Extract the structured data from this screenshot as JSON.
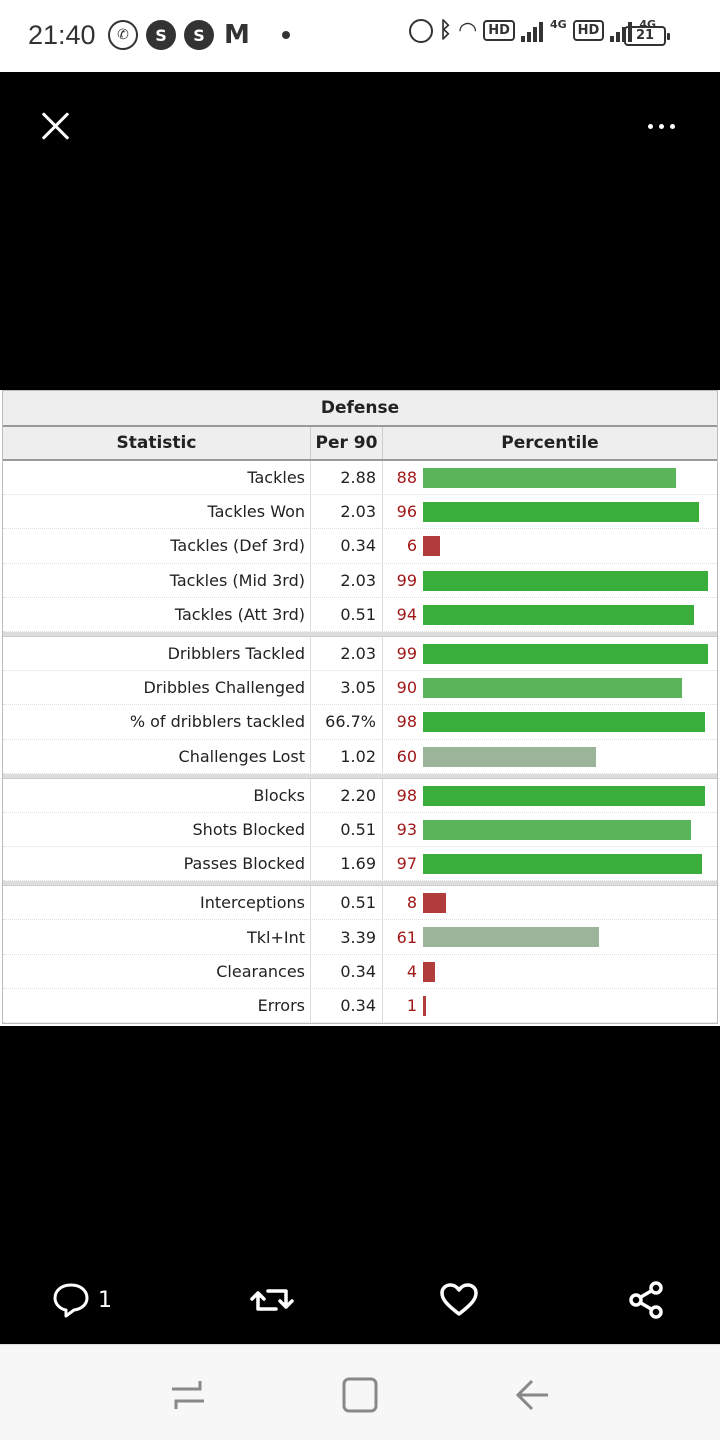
{
  "status_bar": {
    "time": "21:40",
    "battery": "21",
    "left_icons": [
      "whatsapp-icon",
      "sync-icon",
      "sync-icon",
      "gmail-icon",
      "dot-icon"
    ],
    "right_icons": [
      "alarm-icon",
      "bluetooth-icon",
      "wifi-icon",
      "hd-icon",
      "signal-icon",
      "hd-icon",
      "signal-icon",
      "battery-icon"
    ],
    "hd_label": "HD",
    "network_label": "4G"
  },
  "table": {
    "caption": "Defense",
    "headers": {
      "statistic": "Statistic",
      "per90": "Per 90",
      "percentile": "Percentile"
    },
    "groups": [
      [
        {
          "stat": "Tackles",
          "per90": "2.88",
          "pct": "88"
        },
        {
          "stat": "Tackles Won",
          "per90": "2.03",
          "pct": "96"
        },
        {
          "stat": "Tackles (Def 3rd)",
          "per90": "0.34",
          "pct": "6"
        },
        {
          "stat": "Tackles (Mid 3rd)",
          "per90": "2.03",
          "pct": "99"
        },
        {
          "stat": "Tackles (Att 3rd)",
          "per90": "0.51",
          "pct": "94"
        }
      ],
      [
        {
          "stat": "Dribblers Tackled",
          "per90": "2.03",
          "pct": "99"
        },
        {
          "stat": "Dribbles Challenged",
          "per90": "3.05",
          "pct": "90"
        },
        {
          "stat": "% of dribblers tackled",
          "per90": "66.7%",
          "pct": "98"
        },
        {
          "stat": "Challenges Lost",
          "per90": "1.02",
          "pct": "60"
        }
      ],
      [
        {
          "stat": "Blocks",
          "per90": "2.20",
          "pct": "98"
        },
        {
          "stat": "Shots Blocked",
          "per90": "0.51",
          "pct": "93"
        },
        {
          "stat": "Passes Blocked",
          "per90": "1.69",
          "pct": "97"
        }
      ],
      [
        {
          "stat": "Interceptions",
          "per90": "0.51",
          "pct": "8"
        },
        {
          "stat": "Tkl+Int",
          "per90": "3.39",
          "pct": "61"
        },
        {
          "stat": "Clearances",
          "per90": "0.34",
          "pct": "4"
        },
        {
          "stat": "Errors",
          "per90": "0.34",
          "pct": "1"
        }
      ]
    ],
    "colors": {
      "high": "#3aae3a",
      "mid_high": "#5ab55a",
      "mid": "#9ab59a",
      "low": "#b03c3c"
    }
  },
  "actions": {
    "reply_count": "1",
    "icons": [
      "reply-icon",
      "retweet-icon",
      "like-icon",
      "share-icon"
    ]
  },
  "nav": {
    "icons": [
      "recents-icon",
      "home-icon",
      "back-icon"
    ]
  }
}
